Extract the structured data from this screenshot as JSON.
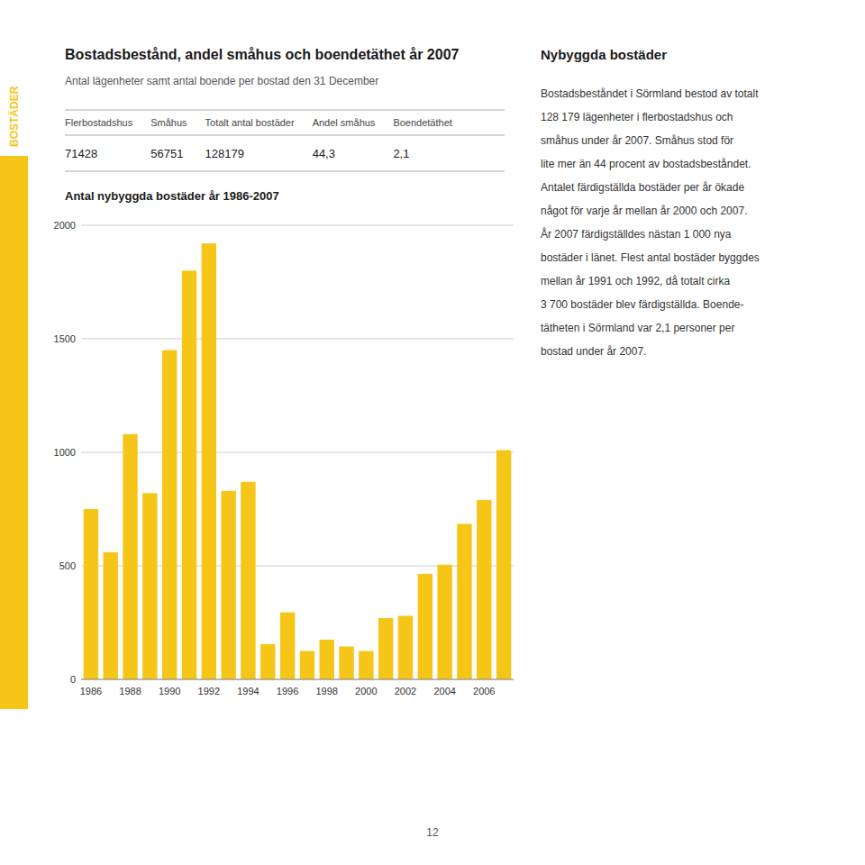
{
  "title": "Bostadsbestånd, andel småhus och boendetäthet år 2007",
  "subtitle": "Antal lägenheter samt antal boende per bostad den 31 December",
  "sidebar_text": "BOSTÄDER",
  "table": {
    "headers": [
      "Flerbostadshus",
      "Småhus",
      "Totalt antal bostäder",
      "Andel småhus",
      "Boendetäthet"
    ],
    "values": [
      "71428",
      "56751",
      "128179",
      "44,3",
      "2,1"
    ]
  },
  "right_title": "Nybyggda bostäder",
  "right_text_lines": [
    "Bostadsbeståndet i Sörmland bestod av totalt",
    "128 179 lägenheter i flerbostadshus och",
    "småhus under år 2007. Småhus stod för",
    "lite mer än 44 procent av bostadsbeståndet.",
    "Antalet färdigställda bostäder per år ökade",
    "något för varje år mellan år 2000 och 2007.",
    "År 2007 färdigställdes nästan 1 000 nya",
    "bostäder i länet. Flest antal bostäder byggdes",
    "mellan år 1991 och 1992, då totalt cirka",
    "3 700 bostäder blev färdigställda. Boende-",
    "tätheten i Sörmland var 2,1 personer per",
    "bostad under år 2007."
  ],
  "page_number": "12",
  "chart_data": {
    "type": "bar",
    "title": "Antal nybyggda bostäder år 1986-2007",
    "categories": [
      "1986",
      null,
      "1988",
      null,
      "1990",
      null,
      "1992",
      null,
      "1994",
      null,
      "1996",
      null,
      "1998",
      null,
      "2000",
      null,
      "2002",
      null,
      "2004",
      null,
      "2006",
      null
    ],
    "values": [
      750,
      560,
      1080,
      820,
      1450,
      1800,
      1920,
      830,
      870,
      155,
      295,
      125,
      175,
      145,
      125,
      270,
      280,
      465,
      505,
      685,
      790,
      1010
    ],
    "color": "#F5C518",
    "ylim": [
      0,
      2000
    ],
    "yticks": [
      0,
      500,
      1000,
      1500,
      2000
    ],
    "grid": true
  }
}
